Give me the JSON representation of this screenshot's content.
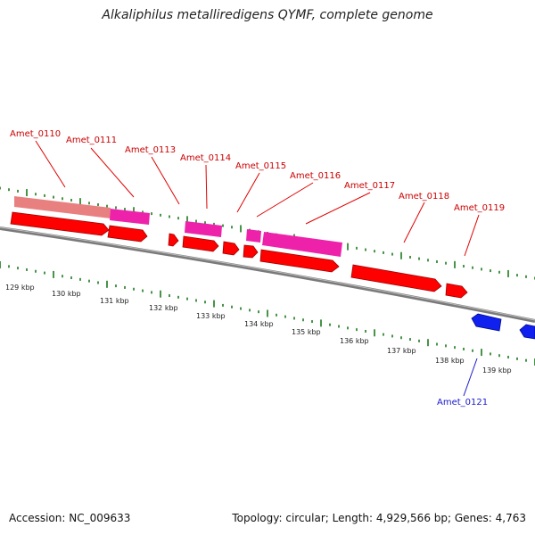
{
  "title": "Alkaliphilus metalliredigens QYMF, complete genome",
  "footer": {
    "accession": "Accession: NC_009633",
    "summary": "Topology: circular; Length: 4,929,566 bp; Genes: 4,763"
  },
  "colors": {
    "forward_gene": "#ff0000",
    "forward_gene_dark": "#b00000",
    "pseudo_light": "#e98080",
    "rna_pink": "#ee22aa",
    "reverse_gene": "#1020ee",
    "backbone": "#7a7a7a",
    "tick_green": "#1a7a1a",
    "label_red": "#cc0000",
    "label_blue": "#1a1acc"
  },
  "kbp_ticks": [
    "129 kbp",
    "130 kbp",
    "131 kbp",
    "132 kbp",
    "133 kbp",
    "134 kbp",
    "135 kbp",
    "136 kbp",
    "137 kbp",
    "138 kbp",
    "139 kbp"
  ],
  "genes": [
    {
      "name": "Amet_0110",
      "strand": "forward"
    },
    {
      "name": "Amet_0111",
      "strand": "forward"
    },
    {
      "name": "Amet_0113",
      "strand": "forward"
    },
    {
      "name": "Amet_0114",
      "strand": "forward"
    },
    {
      "name": "Amet_0115",
      "strand": "forward"
    },
    {
      "name": "Amet_0116",
      "strand": "forward"
    },
    {
      "name": "Amet_0117",
      "strand": "forward"
    },
    {
      "name": "Amet_0118",
      "strand": "forward"
    },
    {
      "name": "Amet_0119",
      "strand": "forward"
    },
    {
      "name": "Amet_0121",
      "strand": "reverse"
    }
  ]
}
